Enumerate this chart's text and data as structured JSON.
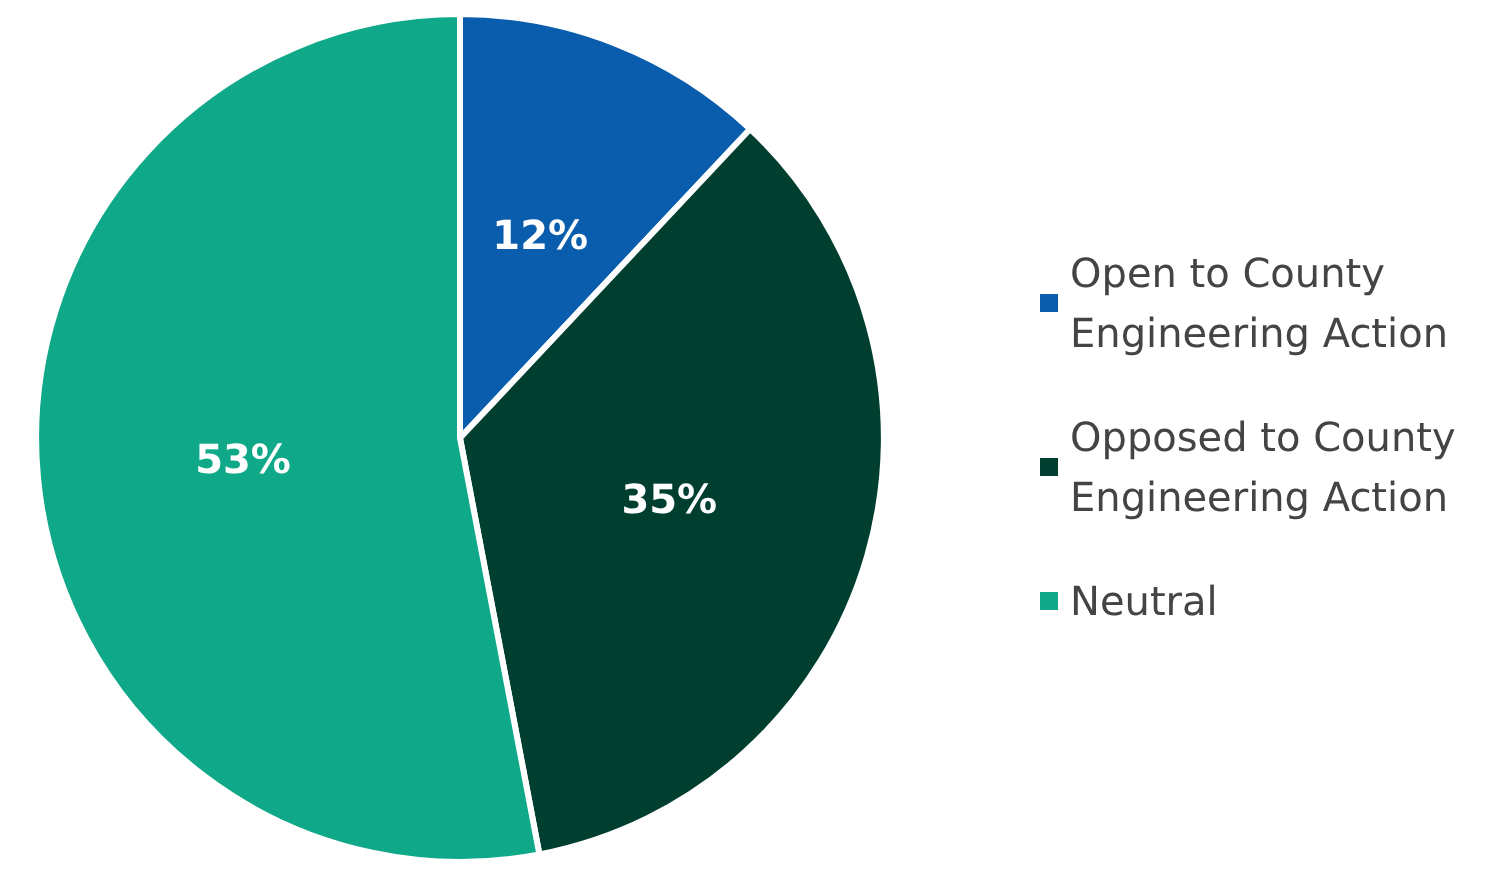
{
  "chart_data": {
    "type": "pie",
    "categories": [
      "Open to County Engineering Action",
      "Opposed to County Engineering Action",
      "Neutral"
    ],
    "values": [
      12,
      35,
      53
    ],
    "colors": [
      "#0a5cad",
      "#003f2f",
      "#0fa888"
    ],
    "value_labels": [
      "12%",
      "35%",
      "53%"
    ],
    "legend": "right"
  }
}
